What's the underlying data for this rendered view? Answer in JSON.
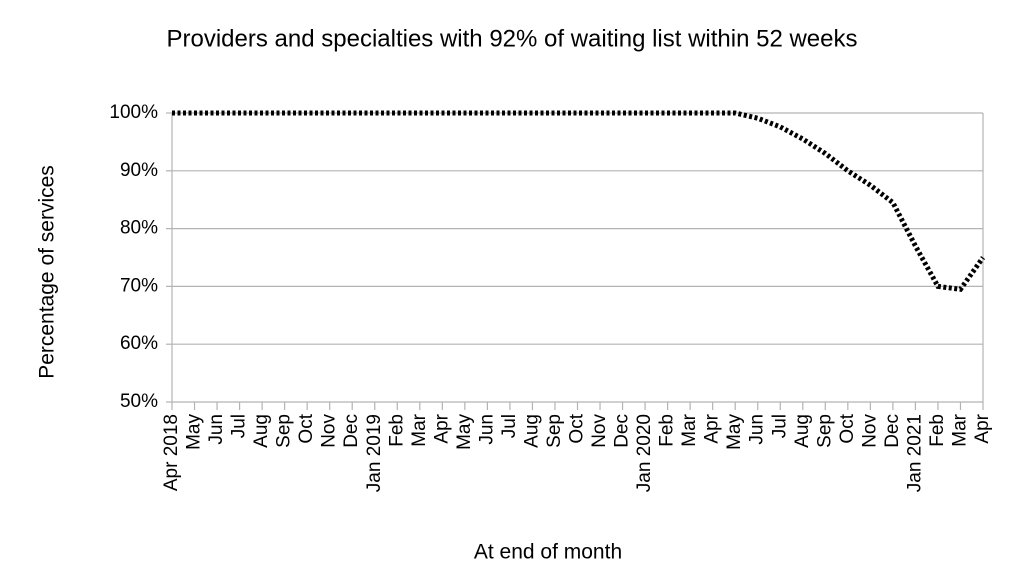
{
  "chart_data": {
    "type": "line",
    "title": "Providers and specialties with 92% of waiting list within 52 weeks",
    "x_label": "At end of month",
    "y_label": "Percentage of services",
    "categories": [
      "Apr 2018",
      "May",
      "Jun",
      "Jul",
      "Aug",
      "Sep",
      "Oct",
      "Nov",
      "Dec",
      "Jan 2019",
      "Feb",
      "Mar",
      "Apr",
      "May",
      "Jun",
      "Jul",
      "Aug",
      "Sep",
      "Oct",
      "Nov",
      "Dec",
      "Jan 2020",
      "Feb",
      "Mar",
      "Apr",
      "May",
      "Jun",
      "Jul",
      "Aug",
      "Sep",
      "Oct",
      "Nov",
      "Dec",
      "Jan 2021",
      "Feb",
      "Mar",
      "Apr"
    ],
    "series": [
      {
        "name": "Percentage of services",
        "color": "#000000",
        "values": [
          100,
          100,
          100,
          100,
          100,
          100,
          100,
          100,
          100,
          100,
          100,
          100,
          100,
          100,
          100,
          100,
          100,
          100,
          100,
          100,
          100,
          100,
          100,
          100,
          100,
          100,
          99.1,
          97.6,
          95.5,
          93,
          90,
          87.5,
          84.5,
          77,
          70,
          69.5,
          75
        ]
      }
    ],
    "ylim": [
      50,
      100
    ],
    "yticks": [
      {
        "value": 50,
        "label": "50%"
      },
      {
        "value": 60,
        "label": "60%"
      },
      {
        "value": 70,
        "label": "70%"
      },
      {
        "value": 80,
        "label": "80%"
      },
      {
        "value": 90,
        "label": "90%"
      },
      {
        "value": 100,
        "label": "100%"
      }
    ],
    "grid": true
  }
}
